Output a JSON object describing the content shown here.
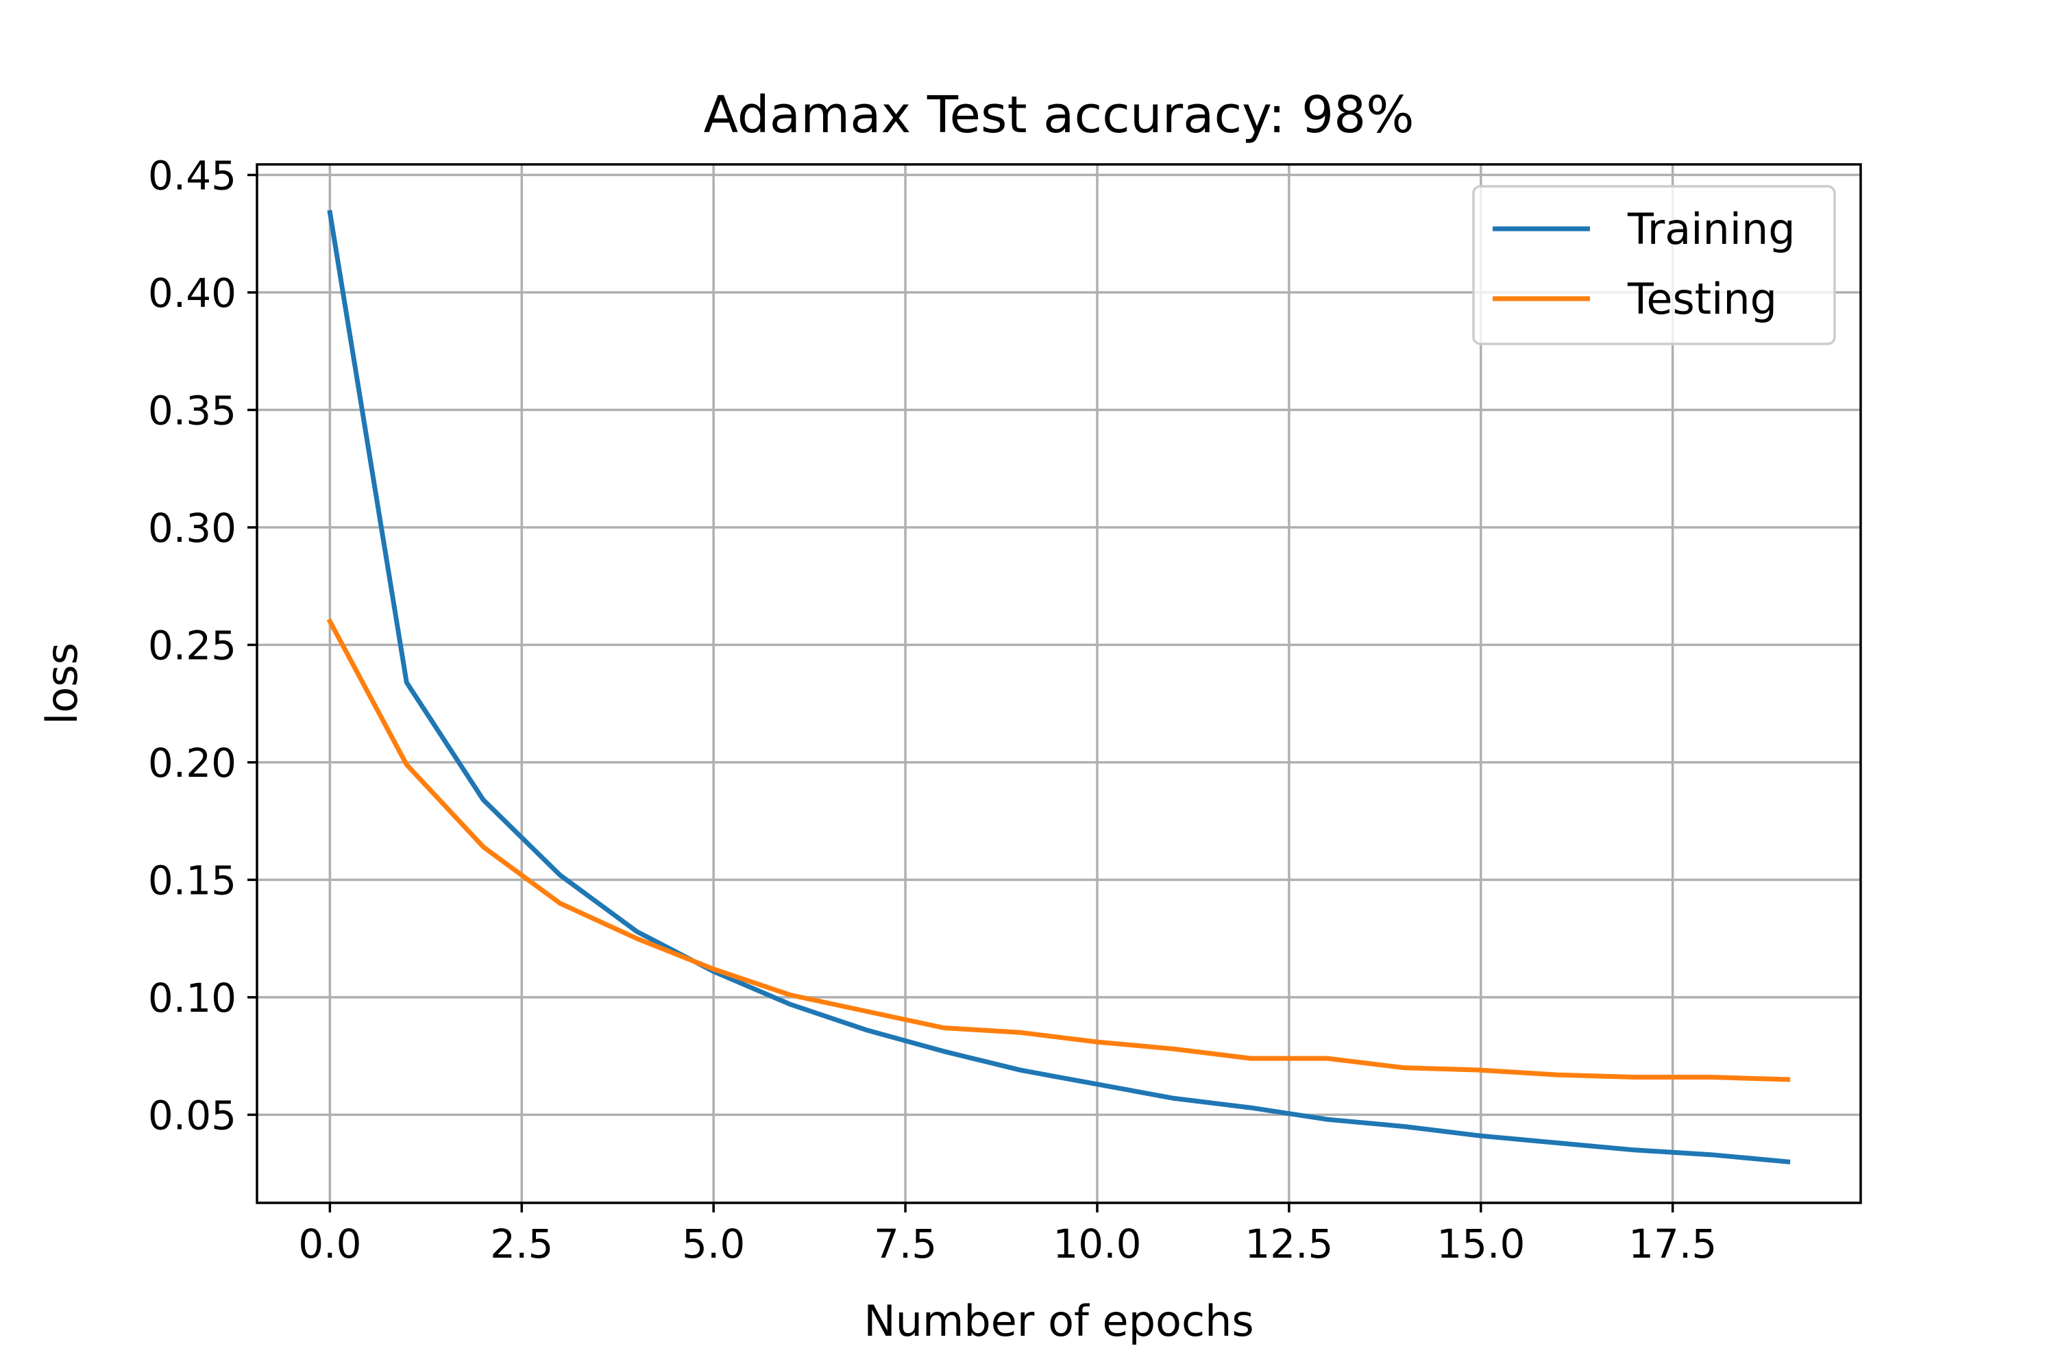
{
  "chart_data": {
    "type": "line",
    "title": "Adamax Test accuracy: 98%",
    "xlabel": "Number of epochs",
    "ylabel": "loss",
    "x": [
      0,
      1,
      2,
      3,
      4,
      5,
      6,
      7,
      8,
      9,
      10,
      11,
      12,
      13,
      14,
      15,
      16,
      17,
      18,
      19
    ],
    "xlim": [
      -0.95,
      19.95
    ],
    "ylim": [
      0.0125,
      0.4545
    ],
    "xticks": [
      0.0,
      2.5,
      5.0,
      7.5,
      10.0,
      12.5,
      15.0,
      17.5
    ],
    "xtick_labels": [
      "0.0",
      "2.5",
      "5.0",
      "7.5",
      "10.0",
      "12.5",
      "15.0",
      "17.5"
    ],
    "yticks": [
      0.05,
      0.1,
      0.15,
      0.2,
      0.25,
      0.3,
      0.35,
      0.4,
      0.45
    ],
    "ytick_labels": [
      "0.05",
      "0.10",
      "0.15",
      "0.20",
      "0.25",
      "0.30",
      "0.35",
      "0.40",
      "0.45"
    ],
    "grid": true,
    "legend_position": "top-right",
    "series": [
      {
        "name": "Training",
        "color": "#1f77b4",
        "values": [
          0.434,
          0.234,
          0.184,
          0.152,
          0.128,
          0.111,
          0.097,
          0.086,
          0.077,
          0.069,
          0.063,
          0.057,
          0.053,
          0.048,
          0.045,
          0.041,
          0.038,
          0.035,
          0.033,
          0.03
        ]
      },
      {
        "name": "Testing",
        "color": "#ff7f0e",
        "values": [
          0.26,
          0.199,
          0.164,
          0.14,
          0.125,
          0.112,
          0.101,
          0.094,
          0.087,
          0.085,
          0.081,
          0.078,
          0.074,
          0.074,
          0.07,
          0.069,
          0.067,
          0.066,
          0.066,
          0.065
        ]
      }
    ]
  }
}
